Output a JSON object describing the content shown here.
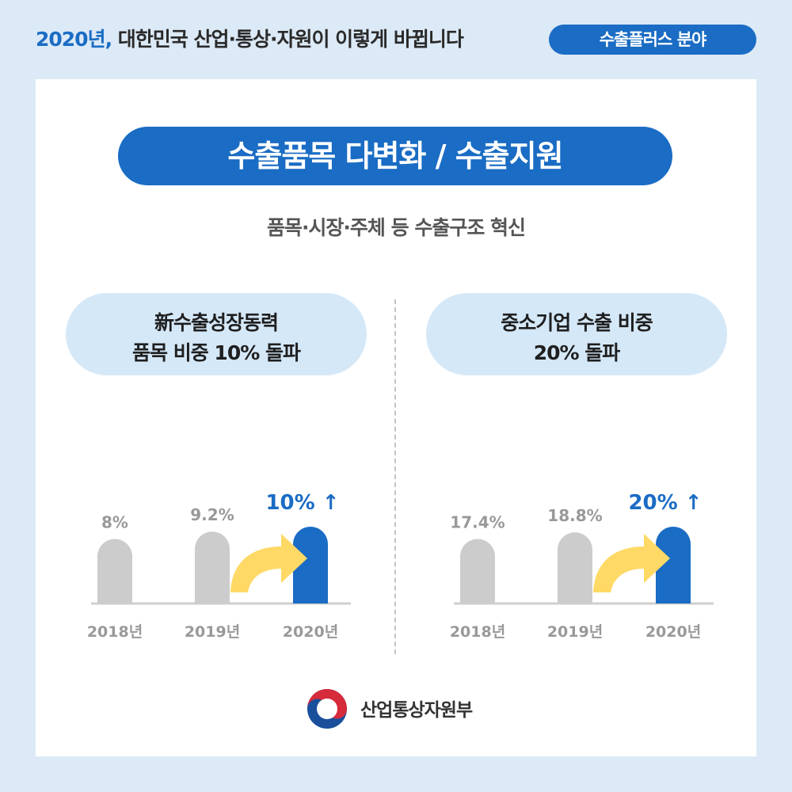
{
  "header": {
    "title_highlight": "2020년,",
    "title_rest": " 대한민국 산업·통상·자원이 이렇게 바뀝니다",
    "badge": "수출플러스 분야"
  },
  "card": {
    "main_title": "수출품목 다변화 / 수출지원",
    "subtitle": "품목·시장·주체 등 수출구조 혁신"
  },
  "panels": {
    "left": {
      "line1": "新수출성장동력",
      "line2": "품목 비중 10% 돌파"
    },
    "right": {
      "line1": "중소기업 수출 비중",
      "line2": "20% 돌파"
    }
  },
  "footer": {
    "ministry": "산업통상자원부"
  },
  "colors": {
    "accent": "#1a6cc4",
    "bar_gray": "#cccccc",
    "arrow": "#ffd966"
  },
  "chart_data": [
    {
      "type": "bar",
      "categories": [
        "2018년",
        "2019년",
        "2020년"
      ],
      "values": [
        8,
        9.2,
        10
      ],
      "labels": [
        "8%",
        "9.2%",
        "10% ↑"
      ],
      "highlight_index": 2,
      "ylim": [
        0,
        10
      ]
    },
    {
      "type": "bar",
      "categories": [
        "2018년",
        "2019년",
        "2020년"
      ],
      "values": [
        17.4,
        18.8,
        20
      ],
      "labels": [
        "17.4%",
        "18.8%",
        "20% ↑"
      ],
      "highlight_index": 2,
      "ylim": [
        0,
        20
      ]
    }
  ]
}
